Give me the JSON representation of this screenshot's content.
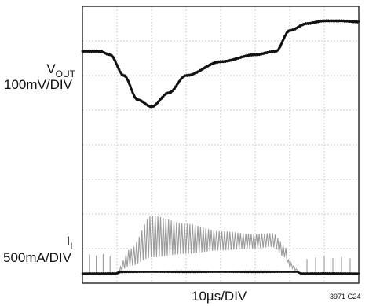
{
  "chart_data": {
    "type": "line",
    "title": "",
    "xlabel": "10µs/DIV",
    "ylabel": "",
    "grid": true,
    "x_divisions": 8,
    "y_divisions": 8,
    "legend": "none",
    "labels": {
      "vout_main": "V",
      "vout_sub": "OUT",
      "vout_scale": "100mV/DIV",
      "il_main": "I",
      "il_sub": "L",
      "il_scale": "500mA/DIV"
    },
    "figure_id": "3971 G24",
    "series": [
      {
        "x": [
          0,
          0.5,
          0.8,
          1.2,
          1.6,
          2.0,
          2.5,
          3.0,
          4.0,
          5.0,
          5.6,
          6.0,
          6.5,
          7.0,
          7.5,
          8.0
        ],
        "y": [
          6.7,
          6.7,
          6.6,
          6.0,
          5.3,
          5.1,
          5.5,
          6.0,
          6.4,
          6.6,
          6.7,
          7.3,
          7.5,
          7.58,
          7.58,
          7.55
        ]
      },
      {
        "x": [
          0,
          0.95,
          1.4,
          2.0,
          3.0,
          4.0,
          5.0,
          5.5,
          5.85,
          6.0,
          6.35,
          8.0
        ],
        "y": [
          0.28,
          0.28,
          1.0,
          1.95,
          1.72,
          1.5,
          1.42,
          1.45,
          1.1,
          0.6,
          0.28,
          0.28
        ]
      },
      {
        "x": [
          0,
          0.95,
          1.4,
          2.0,
          3.0,
          4.0,
          5.0,
          5.5,
          5.85,
          6.0,
          6.35,
          8.0
        ],
        "y": [
          0.28,
          0.28,
          0.5,
          0.75,
          0.85,
          0.95,
          1.0,
          1.05,
          0.75,
          0.45,
          0.28,
          0.28
        ]
      }
    ]
  },
  "colors": {
    "grid": "#bdbdbd",
    "trace": "#111111",
    "ripple": "#9a9a9a",
    "background": "#ffffff"
  }
}
